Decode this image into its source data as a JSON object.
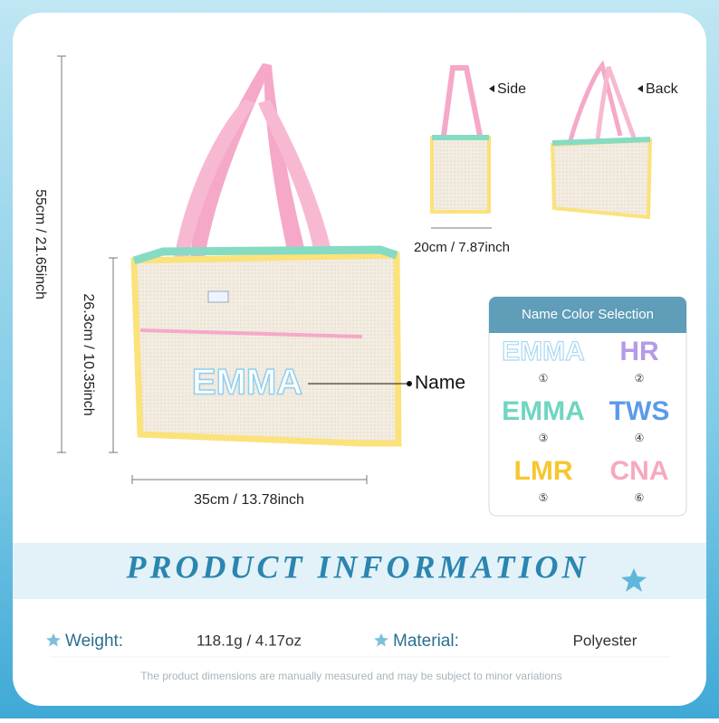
{
  "main_view": {
    "height_label": "55cm / 21.65inch",
    "body_height_label": "26.3cm / 10.35inch",
    "width_label": "35cm / 13.78inch",
    "name_callout": "Name",
    "bag_name": "EMMA"
  },
  "side_view": {
    "label": "Side",
    "width_label": "20cm / 7.87inch"
  },
  "back_view": {
    "label": "Back"
  },
  "color_selection": {
    "title": "Name Color Selection",
    "options": [
      {
        "text": "EMMA",
        "number": "①",
        "color": "#ffffff"
      },
      {
        "text": "HR",
        "number": "②",
        "color": "#b69ae6"
      },
      {
        "text": "EMMA",
        "number": "③",
        "color": "#6fd6c1"
      },
      {
        "text": "TWS",
        "number": "④",
        "color": "#5b9be8"
      },
      {
        "text": "LMR",
        "number": "⑤",
        "color": "#f7c62f"
      },
      {
        "text": "CNA",
        "number": "⑥",
        "color": "#f7a9bd"
      }
    ]
  },
  "product_information": {
    "title": "PRODUCT INFORMATION",
    "specs": [
      {
        "label": "Weight:",
        "value": "118.1g / 4.17oz"
      },
      {
        "label": "Material:",
        "value": "Polyester"
      }
    ],
    "note": "The product dimensions are manually measured and may be subject to minor variations"
  }
}
